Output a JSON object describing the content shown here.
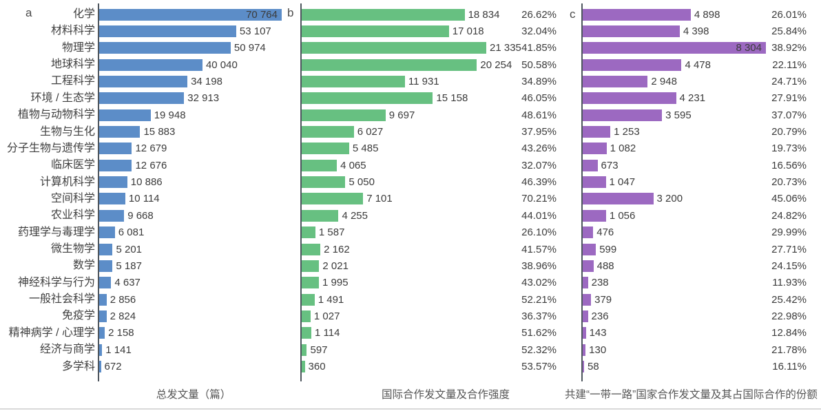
{
  "figure_name": "publications-by-discipline-three-panel-bar-chart",
  "colors": {
    "panel_a_bar": "#5c8dc8",
    "panel_b_bar": "#67c081",
    "panel_c_bar": "#9c69c1",
    "text": "#3b3b3b",
    "axis": "#4e565e"
  },
  "chart_data": {
    "type": "bar",
    "orientation": "horizontal",
    "grid": false,
    "legend": false,
    "categories": [
      "化学",
      "材料科学",
      "物理学",
      "地球科学",
      "工程科学",
      "环境 / 生态学",
      "植物与动物科学",
      "生物与生化",
      "分子生物与遗传学",
      "临床医学",
      "计算机科学",
      "空间科学",
      "农业科学",
      "药理学与毒理学",
      "微生物学",
      "数学",
      "神经科学与行为",
      "一般社会科学",
      "免疫学",
      "精神病学 / 心理学",
      "经济与商学",
      "多学科"
    ],
    "panels": [
      {
        "letter": "a",
        "xlabel": "总发文量（篇）",
        "color": "#5c8dc8",
        "values": [
          70764,
          53107,
          50974,
          40040,
          34198,
          32913,
          19948,
          15883,
          12679,
          12676,
          10886,
          10114,
          9668,
          6081,
          5201,
          5187,
          4637,
          2856,
          2824,
          2158,
          1141,
          672
        ]
      },
      {
        "letter": "b",
        "xlabel": "国际合作发文量及合作强度",
        "color": "#67c081",
        "values": [
          18834,
          17018,
          21335,
          20254,
          11931,
          15158,
          9697,
          6027,
          5485,
          4065,
          5050,
          7101,
          4255,
          1587,
          2162,
          2021,
          1995,
          1491,
          1027,
          1114,
          597,
          360
        ],
        "percents": [
          "26.62%",
          "32.04%",
          "41.85%",
          "50.58%",
          "34.89%",
          "46.05%",
          "48.61%",
          "37.95%",
          "43.26%",
          "32.07%",
          "46.39%",
          "70.21%",
          "44.01%",
          "26.10%",
          "41.57%",
          "38.96%",
          "43.02%",
          "52.21%",
          "36.37%",
          "51.62%",
          "52.32%",
          "53.57%"
        ]
      },
      {
        "letter": "c",
        "xlabel": "共建“一带一路”国家合作发文量及其占国际合作的份额",
        "color": "#9c69c1",
        "values": [
          4898,
          4398,
          8304,
          4478,
          2948,
          4231,
          3595,
          1253,
          1082,
          673,
          1047,
          3200,
          1056,
          476,
          599,
          488,
          238,
          379,
          236,
          143,
          130,
          58
        ],
        "percents": [
          "26.01%",
          "25.84%",
          "38.92%",
          "22.11%",
          "24.71%",
          "27.91%",
          "37.07%",
          "20.79%",
          "19.73%",
          "16.56%",
          "20.73%",
          "45.06%",
          "24.82%",
          "29.99%",
          "27.71%",
          "24.15%",
          "11.93%",
          "25.42%",
          "22.98%",
          "12.84%",
          "21.78%",
          "16.11%"
        ]
      }
    ]
  }
}
